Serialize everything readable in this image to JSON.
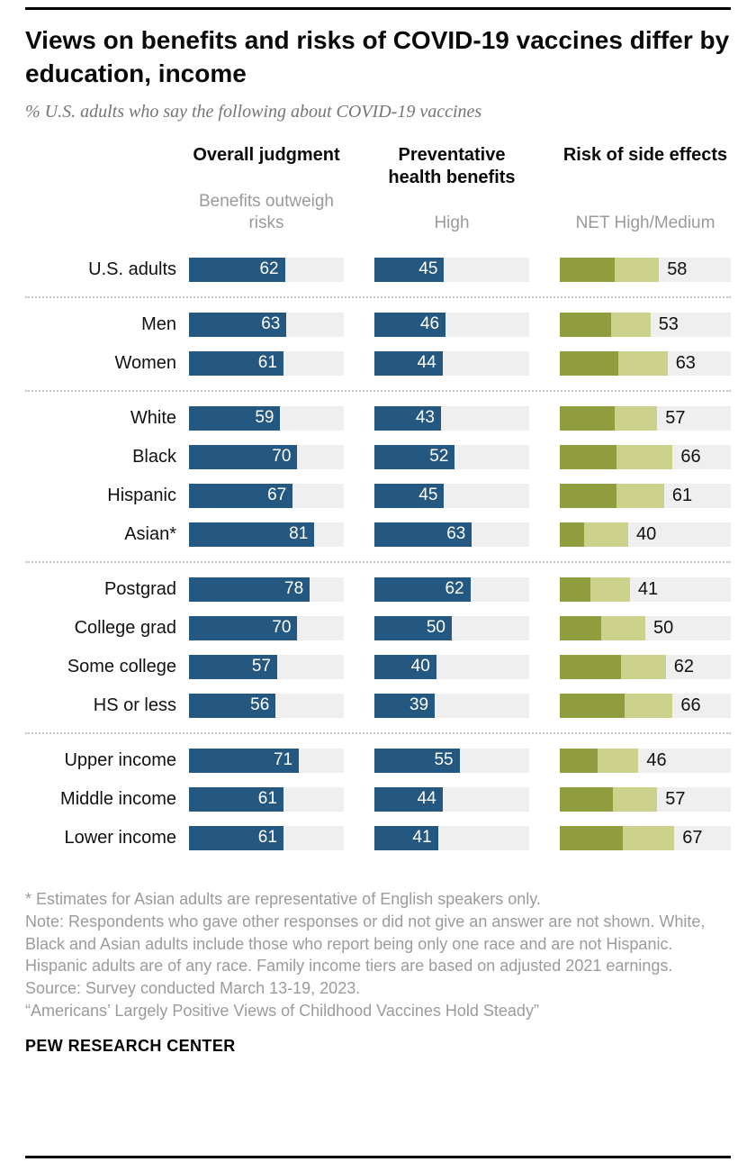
{
  "header": {
    "title": "Views on benefits and risks of COVID-19 vaccines differ by education, income",
    "subtitle": "% U.S. adults who say the following about COVID-19 vaccines"
  },
  "colors": {
    "blue": "#245880",
    "olive_dark": "#8f9d3f",
    "olive_light": "#ccd28c",
    "track": "#efefef"
  },
  "chart_data": {
    "type": "bar",
    "orientation": "horizontal",
    "scale_max": 100,
    "legend_position": "none",
    "columns": [
      {
        "key": "overall_judgment",
        "label": "Overall judgment",
        "sublabel": "Benefits outweigh risks",
        "style": "solid-blue"
      },
      {
        "key": "preventative",
        "label": "Preventative health benefits",
        "sublabel": "High",
        "style": "solid-blue"
      },
      {
        "key": "risk_net",
        "label": "Risk of side effects",
        "sublabel": "NET High/Medium",
        "style": "stacked-olive"
      }
    ],
    "groups": [
      {
        "rows": [
          {
            "label": "U.S. adults",
            "overall_judgment": 62,
            "preventative": 45,
            "risk_net": 58,
            "risk_segments_est": [
              32,
              26
            ]
          }
        ]
      },
      {
        "rows": [
          {
            "label": "Men",
            "overall_judgment": 63,
            "preventative": 46,
            "risk_net": 53,
            "risk_segments_est": [
              30,
              23
            ]
          },
          {
            "label": "Women",
            "overall_judgment": 61,
            "preventative": 44,
            "risk_net": 63,
            "risk_segments_est": [
              34,
              29
            ]
          }
        ]
      },
      {
        "rows": [
          {
            "label": "White",
            "overall_judgment": 59,
            "preventative": 43,
            "risk_net": 57,
            "risk_segments_est": [
              32,
              25
            ]
          },
          {
            "label": "Black",
            "overall_judgment": 70,
            "preventative": 52,
            "risk_net": 66,
            "risk_segments_est": [
              33,
              33
            ]
          },
          {
            "label": "Hispanic",
            "overall_judgment": 67,
            "preventative": 45,
            "risk_net": 61,
            "risk_segments_est": [
              33,
              28
            ]
          },
          {
            "label": "Asian*",
            "overall_judgment": 81,
            "preventative": 63,
            "risk_net": 40,
            "risk_segments_est": [
              14,
              26
            ]
          }
        ]
      },
      {
        "rows": [
          {
            "label": "Postgrad",
            "overall_judgment": 78,
            "preventative": 62,
            "risk_net": 41,
            "risk_segments_est": [
              18,
              23
            ]
          },
          {
            "label": "College grad",
            "overall_judgment": 70,
            "preventative": 50,
            "risk_net": 50,
            "risk_segments_est": [
              24,
              26
            ]
          },
          {
            "label": "Some college",
            "overall_judgment": 57,
            "preventative": 40,
            "risk_net": 62,
            "risk_segments_est": [
              36,
              26
            ]
          },
          {
            "label": "HS or less",
            "overall_judgment": 56,
            "preventative": 39,
            "risk_net": 66,
            "risk_segments_est": [
              38,
              28
            ]
          }
        ]
      },
      {
        "rows": [
          {
            "label": "Upper income",
            "overall_judgment": 71,
            "preventative": 55,
            "risk_net": 46,
            "risk_segments_est": [
              22,
              24
            ]
          },
          {
            "label": "Middle income",
            "overall_judgment": 61,
            "preventative": 44,
            "risk_net": 57,
            "risk_segments_est": [
              31,
              26
            ]
          },
          {
            "label": "Lower income",
            "overall_judgment": 61,
            "preventative": 41,
            "risk_net": 67,
            "risk_segments_est": [
              37,
              30
            ]
          }
        ]
      }
    ]
  },
  "footnotes": {
    "asterisk": "* Estimates for Asian adults are representative of English speakers only.",
    "note": "Note: Respondents who gave other responses or did not give an answer are not shown. White, Black and Asian adults include those who report being only one race and are not Hispanic. Hispanic adults are of any race. Family income tiers are based on adjusted 2021 earnings.",
    "source": "Source: Survey conducted March 13-19, 2023.",
    "quote": "“Americans’ Largely Positive Views of Childhood Vaccines Hold Steady”"
  },
  "footer": {
    "brand": "PEW RESEARCH CENTER"
  }
}
